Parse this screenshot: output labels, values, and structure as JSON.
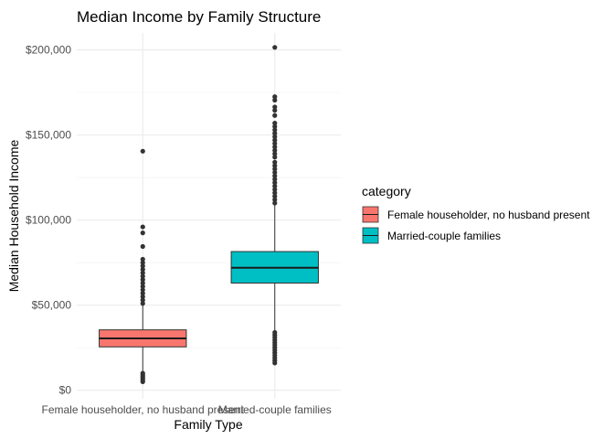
{
  "chart_data": {
    "type": "box",
    "title": "Median Income by Family Structure",
    "xlabel": "Family Type",
    "ylabel": "Median Household Income",
    "ylim": [
      -5000,
      210000
    ],
    "yticks": [
      0,
      50000,
      100000,
      150000,
      200000
    ],
    "ytick_labels": [
      "$0",
      "$50,000",
      "$100,000",
      "$150,000",
      "$200,000"
    ],
    "categories": [
      "Female householder, no husband present",
      "Married-couple families"
    ],
    "legend": {
      "title": "category",
      "placement": "right"
    },
    "grid": true,
    "series": [
      {
        "name": "Female householder, no husband present",
        "color": "#F8766D",
        "q1": 25500,
        "median": 30500,
        "q3": 35500,
        "whisker_low": 10500,
        "whisker_high": 51000,
        "outliers": [
          5000,
          6000,
          7000,
          8000,
          9000,
          10000,
          51000,
          53000,
          55000,
          57000,
          59000,
          61000,
          63000,
          65000,
          67000,
          69000,
          71000,
          73000,
          75000,
          77000,
          84500,
          92500,
          96000,
          140500
        ]
      },
      {
        "name": "Married-couple families",
        "color": "#00BFC4",
        "q1": 63000,
        "median": 72000,
        "q3": 81500,
        "whisker_low": 35000,
        "whisker_high": 109000,
        "outliers": [
          16000,
          17500,
          19000,
          20500,
          22000,
          23500,
          25000,
          26500,
          28000,
          29500,
          31000,
          32500,
          34000,
          110000,
          112000,
          114000,
          116000,
          118000,
          120000,
          122000,
          124000,
          126000,
          128000,
          130000,
          132000,
          134000,
          137000,
          139000,
          141000,
          143000,
          145000,
          147000,
          149000,
          151000,
          153000,
          155000,
          157000,
          161500,
          164500,
          166500,
          170500,
          172500,
          201500
        ]
      }
    ]
  }
}
